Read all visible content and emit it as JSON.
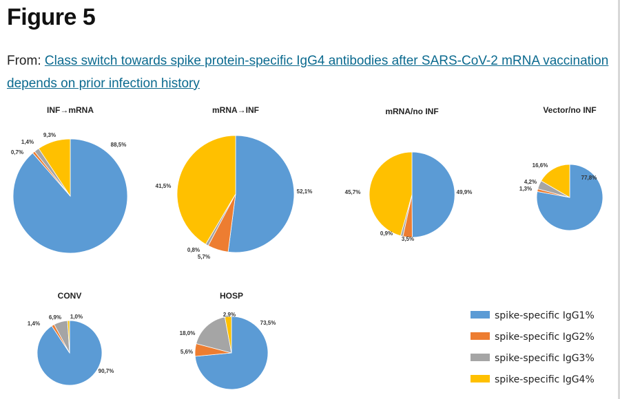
{
  "header": {
    "figure_title": "Figure 5",
    "from_prefix": "From: ",
    "article_link": "Class switch towards spike protein-specific IgG4 antibodies after SARS-CoV-2 mRNA vaccination depends on prior infection history"
  },
  "colors": {
    "IgG1": "#5b9bd5",
    "IgG2": "#ed7d31",
    "IgG3": "#a5a5a5",
    "IgG4": "#ffc000"
  },
  "chart_data": {
    "type": "pie",
    "legend_position": "bottom-right",
    "legend": [
      {
        "key": "IgG1",
        "label": "spike-specific IgG1%"
      },
      {
        "key": "IgG2",
        "label": "spike-specific IgG2%"
      },
      {
        "key": "IgG3",
        "label": "spike-specific IgG3%"
      },
      {
        "key": "IgG4",
        "label": "spike-specific IgG4%"
      }
    ],
    "charts": [
      {
        "title": "INF→mRNA",
        "values": [
          88.5,
          0.7,
          1.4,
          9.3
        ],
        "labels": [
          "88,5%",
          "0,7%",
          "1,4%",
          "9,3%"
        ]
      },
      {
        "title": "mRNA→INF",
        "values": [
          52.1,
          5.7,
          0.8,
          41.5
        ],
        "labels": [
          "52,1%",
          "5,7%",
          "0,8%",
          "41,5%"
        ]
      },
      {
        "title": "mRNA/no INF",
        "values": [
          49.9,
          3.5,
          0.9,
          45.7
        ],
        "labels": [
          "49,9%",
          "3,5%",
          "0,9%",
          "45,7%"
        ]
      },
      {
        "title": "Vector/no INF",
        "values": [
          77.8,
          1.3,
          4.2,
          16.6
        ],
        "labels": [
          "77,8%",
          "1,3%",
          "4,2%",
          "16,6%"
        ]
      },
      {
        "title": "CONV",
        "values": [
          90.7,
          1.4,
          6.9,
          1.0
        ],
        "labels": [
          "90,7%",
          "1,4%",
          "6,9%",
          "1,0%"
        ]
      },
      {
        "title": "HOSP",
        "values": [
          73.5,
          5.6,
          18.0,
          2.9
        ],
        "labels": [
          "73,5%",
          "5,6%",
          "18,0%",
          "2,9%"
        ]
      }
    ]
  }
}
